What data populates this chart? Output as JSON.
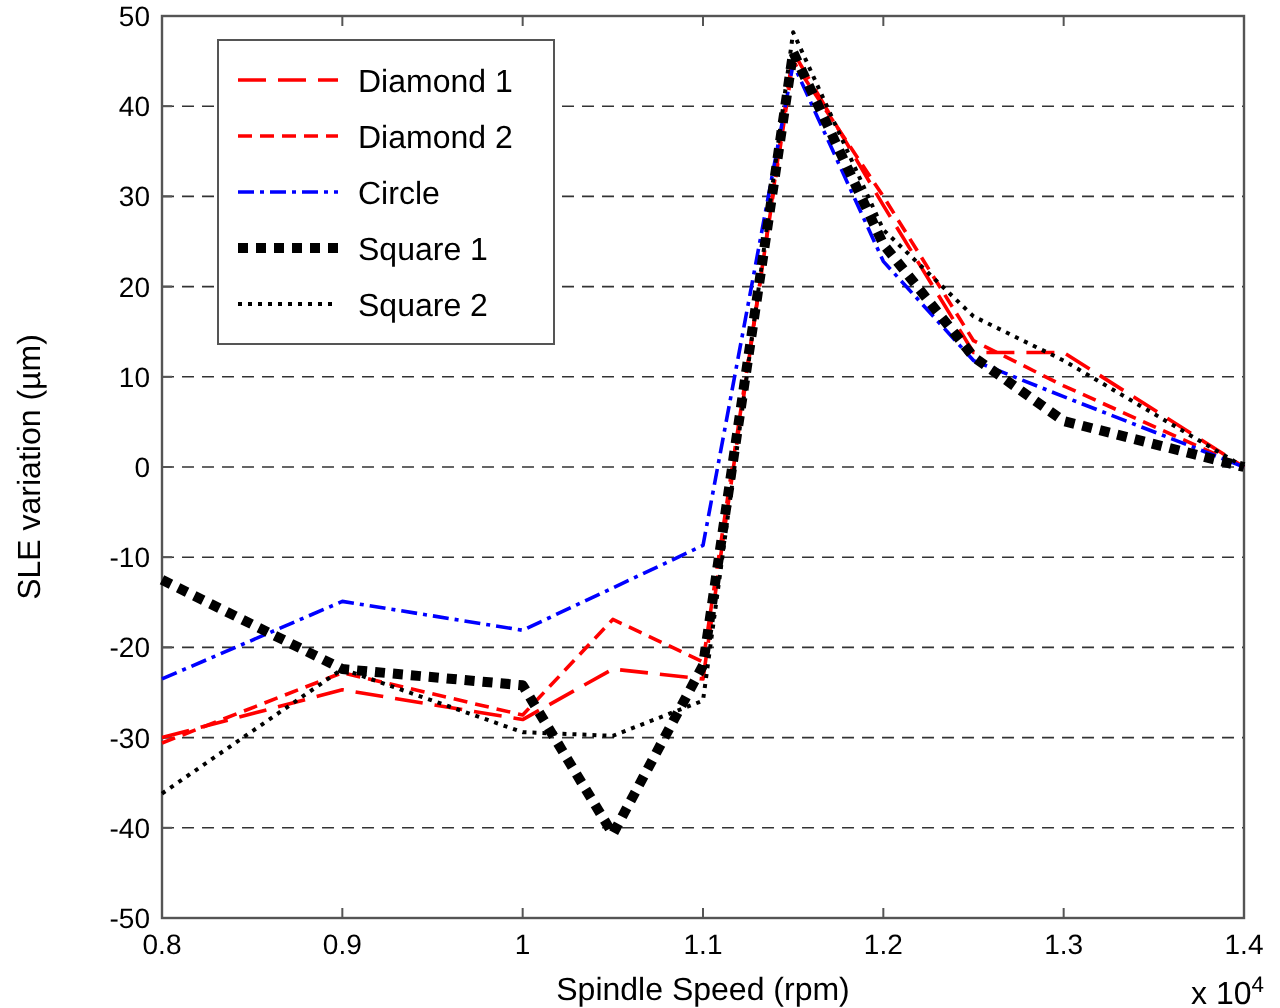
{
  "chart_data": {
    "type": "line",
    "xlabel": "Spindle Speed (rpm)",
    "ylabel": "SLE variation (µm)",
    "x": [
      0.8,
      0.9,
      1.0,
      1.05,
      1.1,
      1.15,
      1.2,
      1.25,
      1.3,
      1.4
    ],
    "series": [
      {
        "name": "Diamond 1",
        "color": "#ff0000",
        "line_style": "dashed",
        "values": [
          -30,
          -24.7,
          -28,
          -22.4,
          -23.5,
          46,
          29,
          12.7,
          12.7,
          0
        ]
      },
      {
        "name": "Diamond 2",
        "color": "#ff0000",
        "line_style": "dashed",
        "values": [
          -30.6,
          -22.8,
          -27.5,
          -16.9,
          -21.6,
          45,
          30,
          14,
          9,
          0
        ]
      },
      {
        "name": "Circle",
        "color": "#0000ff",
        "line_style": "dashed",
        "values": [
          -23.5,
          -14.9,
          -18.1,
          -13.4,
          -8.7,
          44.7,
          22.8,
          11.8,
          7.8,
          0
        ]
      },
      {
        "name": "Square 1",
        "color": "#000000",
        "line_style": "dotted",
        "values": [
          -12.5,
          -22.4,
          -24.2,
          -40.7,
          -22,
          46,
          24.7,
          12.2,
          5.1,
          0
        ]
      },
      {
        "name": "Square 2",
        "color": "#000000",
        "line_style": "dotted",
        "values": [
          -36.2,
          -22.4,
          -29.4,
          -29.8,
          -25.9,
          48.2,
          26.3,
          16.7,
          11.8,
          0
        ]
      }
    ],
    "xlim": [
      0.8,
      1.4
    ],
    "xticks": [
      0.8,
      0.9,
      1,
      1.1,
      1.2,
      1.3,
      1.4
    ],
    "ylim": [
      -50,
      50
    ],
    "yticks": [
      -50,
      -40,
      -30,
      -20,
      -10,
      0,
      10,
      20,
      30,
      40,
      50
    ],
    "grid": "y",
    "legend": "top left",
    "annotations": [
      "x 10$^{4}$"
    ]
  }
}
